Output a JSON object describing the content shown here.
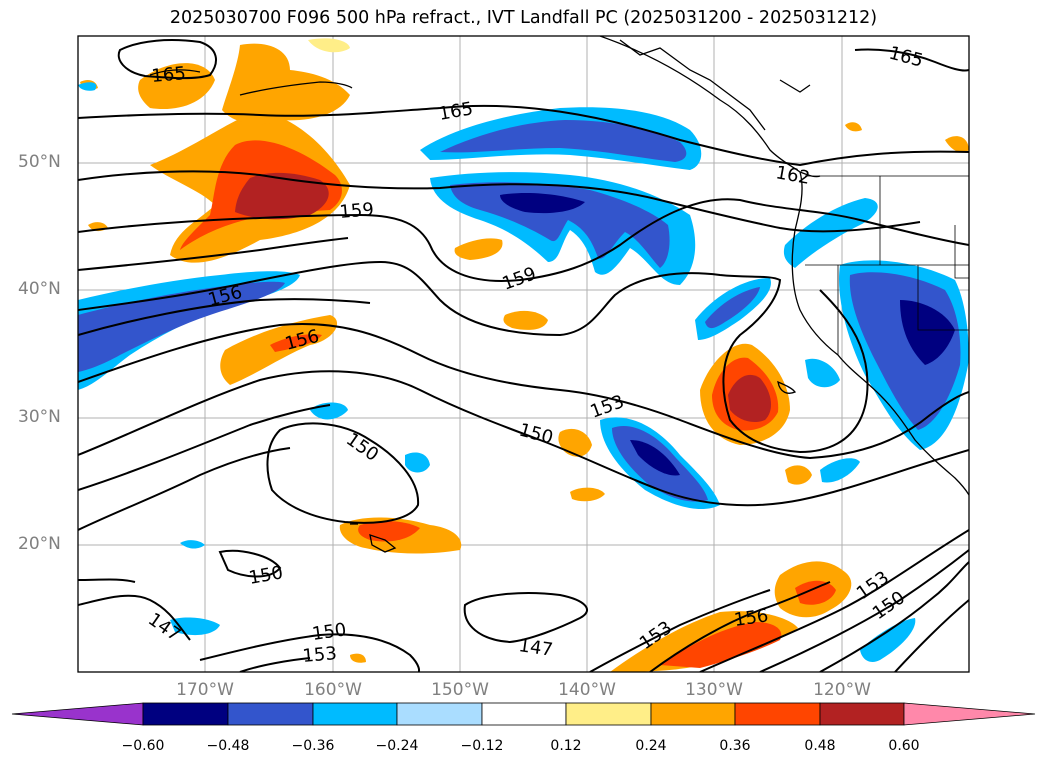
{
  "title": "2025030700 F096 500 hPa refract., IVT Landfall PC (2025031200 - 2025031212)",
  "map": {
    "lat_labels": [
      "50°N",
      "40°N",
      "30°N",
      "20°N"
    ],
    "lon_labels": [
      "170°W",
      "160°W",
      "150°W",
      "140°W",
      "130°W",
      "120°W"
    ],
    "contour_labels": [
      "165",
      "165",
      "165",
      "162",
      "159",
      "159",
      "156",
      "156",
      "153",
      "150",
      "150",
      "150",
      "147",
      "147",
      "150",
      "153",
      "156",
      "153",
      "150",
      "153"
    ]
  },
  "colorbar": {
    "colors": [
      "#9933cc",
      "#000080",
      "#3355cc",
      "#00bbff",
      "#aaddff",
      "#ffffff",
      "#ffee88",
      "#ffa500",
      "#ff4500",
      "#b22222",
      "#ff88aa"
    ],
    "tick_labels": [
      "−0.60",
      "−0.48",
      "−0.36",
      "−0.24",
      "−0.12",
      "0.12",
      "0.24",
      "0.36",
      "0.48",
      "0.60"
    ]
  }
}
